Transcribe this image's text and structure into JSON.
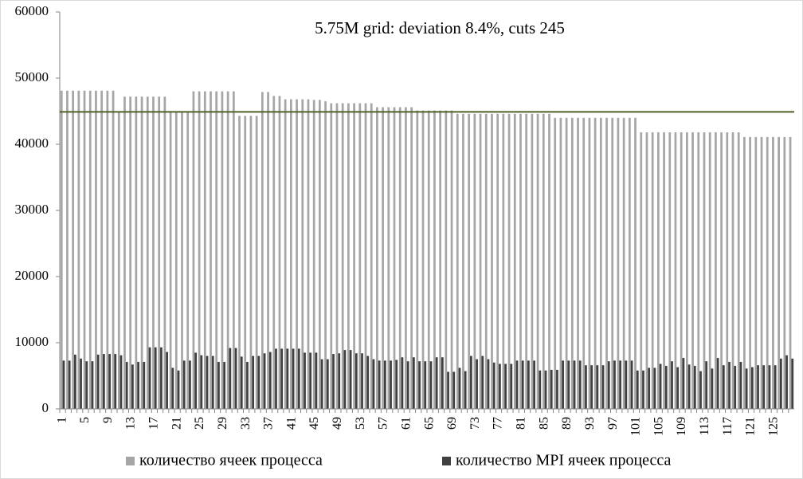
{
  "chart_data": {
    "type": "bar",
    "title": "5.75M grid: deviation 8.4%, cuts 245",
    "categories": [
      1,
      null,
      null,
      null,
      5,
      null,
      null,
      null,
      9,
      null,
      null,
      null,
      13,
      null,
      null,
      null,
      17,
      null,
      null,
      null,
      21,
      null,
      null,
      null,
      25,
      null,
      null,
      null,
      29,
      null,
      null,
      null,
      33,
      null,
      null,
      null,
      37,
      null,
      null,
      null,
      41,
      null,
      null,
      null,
      45,
      null,
      null,
      null,
      49,
      null,
      null,
      null,
      53,
      null,
      null,
      null,
      57,
      null,
      null,
      null,
      61,
      null,
      null,
      null,
      65,
      null,
      null,
      null,
      69,
      null,
      null,
      null,
      73,
      null,
      null,
      null,
      77,
      null,
      null,
      null,
      81,
      null,
      null,
      null,
      85,
      null,
      null,
      null,
      89,
      null,
      null,
      null,
      93,
      null,
      null,
      null,
      97,
      null,
      null,
      null,
      101,
      null,
      null,
      null,
      105,
      null,
      null,
      null,
      109,
      null,
      null,
      null,
      113,
      null,
      null,
      null,
      117,
      null,
      null,
      null,
      121,
      null,
      null,
      null,
      125,
      null,
      null,
      null
    ],
    "series": [
      {
        "name": "количество ячеек процесса",
        "color": "#a6a6a6",
        "values": [
          48100,
          48100,
          48100,
          48100,
          48100,
          48100,
          48100,
          48100,
          48100,
          48100,
          45000,
          47200,
          47200,
          47200,
          47200,
          47200,
          47200,
          47200,
          47200,
          45000,
          45000,
          45000,
          45000,
          48000,
          48000,
          48000,
          48000,
          48000,
          48000,
          48000,
          48000,
          44300,
          44300,
          44300,
          44300,
          47900,
          47900,
          47300,
          47300,
          46800,
          46800,
          46800,
          46800,
          46800,
          46700,
          46700,
          46500,
          46200,
          46200,
          46200,
          46200,
          46200,
          46200,
          46200,
          46200,
          45600,
          45600,
          45600,
          45600,
          45600,
          45600,
          45600,
          45100,
          45100,
          45100,
          45100,
          45100,
          45100,
          45100,
          44600,
          44600,
          44600,
          44600,
          44600,
          44600,
          44600,
          44600,
          44600,
          44600,
          44600,
          44600,
          44600,
          44600,
          44600,
          44600,
          44600,
          44000,
          44000,
          44000,
          44000,
          44000,
          44000,
          44000,
          44000,
          44000,
          44000,
          44000,
          44000,
          44000,
          44000,
          44000,
          41800,
          41800,
          41800,
          41800,
          41800,
          41800,
          41800,
          41800,
          41800,
          41800,
          41800,
          41800,
          41800,
          41800,
          41800,
          41800,
          41800,
          41800,
          41100,
          41100,
          41100,
          41100,
          41100,
          41100,
          41100,
          41100,
          41100
        ]
      },
      {
        "name": "количество MPI ячеек процесса",
        "color": "#404040",
        "values": [
          7300,
          7300,
          8200,
          7600,
          7200,
          7200,
          8200,
          8300,
          8300,
          8300,
          8100,
          7100,
          6700,
          7100,
          7100,
          9300,
          9300,
          9300,
          8600,
          6200,
          5800,
          7300,
          7300,
          8500,
          8100,
          8000,
          8000,
          7100,
          7100,
          9200,
          9200,
          7900,
          7100,
          8000,
          8000,
          8400,
          8600,
          9100,
          9100,
          9100,
          9100,
          9100,
          8500,
          8500,
          8500,
          7500,
          7500,
          8300,
          8400,
          8900,
          8900,
          8400,
          8400,
          8000,
          7500,
          7300,
          7300,
          7300,
          7400,
          7800,
          7200,
          7800,
          7200,
          7200,
          7200,
          7800,
          7800,
          5600,
          5600,
          6200,
          5700,
          8000,
          7500,
          8000,
          7500,
          7000,
          6800,
          6800,
          6800,
          7300,
          7300,
          7300,
          7300,
          5800,
          5800,
          5900,
          5900,
          7300,
          7300,
          7300,
          7300,
          6600,
          6600,
          6600,
          6600,
          7200,
          7300,
          7300,
          7300,
          7300,
          5800,
          5800,
          6200,
          6200,
          6800,
          6500,
          7200,
          6300,
          7700,
          6700,
          6500,
          5700,
          7200,
          6100,
          7700,
          6600,
          7100,
          6500,
          7100,
          6100,
          6300,
          6600,
          6600,
          6600,
          6600,
          7600,
          8100,
          7600
        ]
      }
    ],
    "mean_line": {
      "value": 44900,
      "color": "#4f6228"
    },
    "ylim": [
      0,
      60000
    ],
    "yticks": [
      0,
      10000,
      20000,
      30000,
      40000,
      50000,
      60000
    ],
    "grid": false,
    "legend": "bottom"
  }
}
